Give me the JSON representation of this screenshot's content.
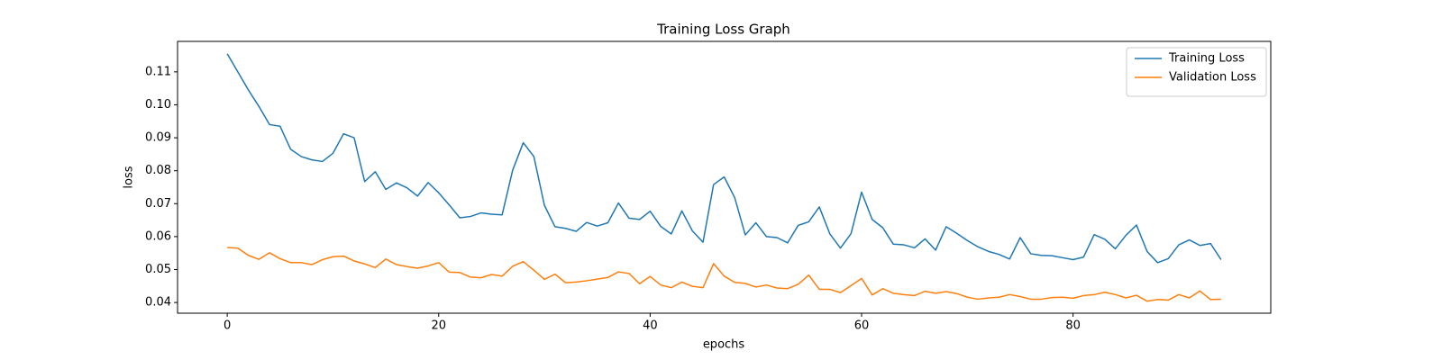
{
  "chart_data": {
    "type": "line",
    "title": "Training Loss Graph",
    "xlabel": "epochs",
    "ylabel": "loss",
    "x": [
      0,
      1,
      2,
      3,
      4,
      5,
      6,
      7,
      8,
      9,
      10,
      11,
      12,
      13,
      14,
      15,
      16,
      17,
      18,
      19,
      20,
      21,
      22,
      23,
      24,
      25,
      26,
      27,
      28,
      29,
      30,
      31,
      32,
      33,
      34,
      35,
      36,
      37,
      38,
      39,
      40,
      41,
      42,
      43,
      44,
      45,
      46,
      47,
      48,
      49,
      50,
      51,
      52,
      53,
      54,
      55,
      56,
      57,
      58,
      59,
      60,
      61,
      62,
      63,
      64,
      65,
      66,
      67,
      68,
      69,
      70,
      71,
      72,
      73,
      74,
      75,
      76,
      77,
      78,
      79,
      80,
      81,
      82,
      83,
      84,
      85,
      86,
      87,
      88,
      89,
      90,
      91,
      92,
      93,
      94
    ],
    "series": [
      {
        "name": "Training Loss",
        "color": "#1f77b4",
        "values": [
          0.1155,
          0.11,
          0.1045,
          0.0995,
          0.094,
          0.0935,
          0.0865,
          0.0843,
          0.0833,
          0.0828,
          0.0853,
          0.0912,
          0.09,
          0.0767,
          0.0797,
          0.0743,
          0.0763,
          0.0748,
          0.0723,
          0.0764,
          0.0733,
          0.0696,
          0.0657,
          0.0661,
          0.0672,
          0.0668,
          0.0666,
          0.0802,
          0.0885,
          0.0843,
          0.0695,
          0.063,
          0.0625,
          0.0616,
          0.0643,
          0.0632,
          0.0642,
          0.0702,
          0.0656,
          0.0652,
          0.0677,
          0.0631,
          0.0608,
          0.0678,
          0.0617,
          0.0583,
          0.0758,
          0.0781,
          0.0718,
          0.0605,
          0.0642,
          0.06,
          0.0597,
          0.0581,
          0.0634,
          0.0645,
          0.069,
          0.0608,
          0.0565,
          0.0609,
          0.0735,
          0.0652,
          0.0627,
          0.0577,
          0.0575,
          0.0566,
          0.0593,
          0.0559,
          0.063,
          0.061,
          0.0588,
          0.0569,
          0.0555,
          0.0546,
          0.0532,
          0.0597,
          0.0548,
          0.0543,
          0.0542,
          0.0536,
          0.053,
          0.0538,
          0.0606,
          0.0592,
          0.0563,
          0.0604,
          0.0635,
          0.0555,
          0.0521,
          0.0533,
          0.0575,
          0.059,
          0.0573,
          0.0579,
          0.053
        ]
      },
      {
        "name": "Validation Loss",
        "color": "#ff7f0e",
        "values": [
          0.0567,
          0.0565,
          0.0543,
          0.0531,
          0.0551,
          0.0533,
          0.0521,
          0.0521,
          0.0515,
          0.053,
          0.0539,
          0.0541,
          0.0526,
          0.0517,
          0.0506,
          0.0532,
          0.0515,
          0.0509,
          0.0504,
          0.0511,
          0.0521,
          0.0492,
          0.0491,
          0.0477,
          0.0475,
          0.0485,
          0.048,
          0.051,
          0.0524,
          0.0498,
          0.047,
          0.0486,
          0.046,
          0.0462,
          0.0466,
          0.0471,
          0.0476,
          0.0493,
          0.0488,
          0.0457,
          0.0479,
          0.0453,
          0.0445,
          0.0462,
          0.0449,
          0.0445,
          0.0518,
          0.048,
          0.0461,
          0.0458,
          0.0447,
          0.0453,
          0.0444,
          0.0442,
          0.0455,
          0.0483,
          0.044,
          0.044,
          0.043,
          0.0451,
          0.0473,
          0.0423,
          0.0442,
          0.0428,
          0.0424,
          0.0421,
          0.0434,
          0.0428,
          0.0433,
          0.0427,
          0.0416,
          0.041,
          0.0414,
          0.0416,
          0.0424,
          0.0418,
          0.041,
          0.041,
          0.0415,
          0.0416,
          0.0413,
          0.0421,
          0.0424,
          0.0431,
          0.0424,
          0.0414,
          0.0422,
          0.0404,
          0.0409,
          0.0407,
          0.0424,
          0.0414,
          0.0435,
          0.0409,
          0.041
        ]
      }
    ],
    "xlim": [
      -4.7,
      98.7
    ],
    "xticks": [
      0,
      20,
      40,
      60,
      80
    ],
    "ylim": [
      0.03675,
      0.11925
    ],
    "yticks": [
      0.04,
      0.05,
      0.06,
      0.07,
      0.08,
      0.09,
      {
        "value": 0.1,
        "label": "0.10"
      },
      0.11
    ],
    "grid": false,
    "legend": "upper right"
  }
}
